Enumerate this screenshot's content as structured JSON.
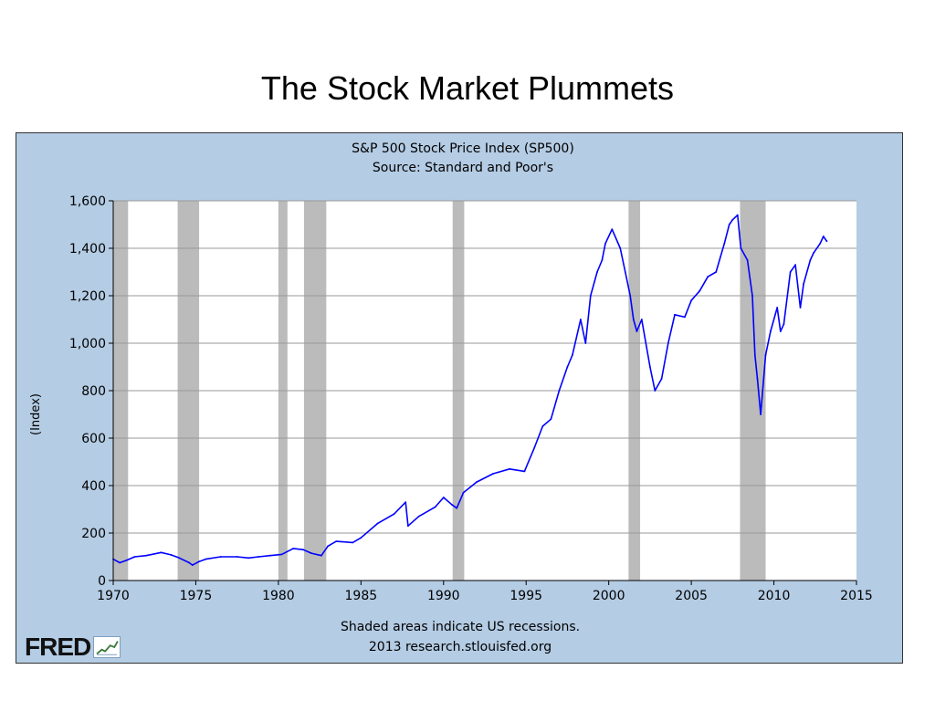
{
  "slide": {
    "title": "The Stock Market Plummets"
  },
  "footer": {
    "note": "Shaded areas indicate US recessions.",
    "credit": "2013 research.stlouisfed.org",
    "logo_text": "FRED"
  },
  "colors": {
    "line": "#0000ff",
    "recession": "#bbbbbb",
    "panel": "#b4cce4",
    "plot_bg": "#ffffff"
  },
  "chart_data": {
    "type": "line",
    "title": "S&P 500 Stock Price Index (SP500)",
    "subtitle": "Source: Standard and Poor's",
    "xlabel": "",
    "ylabel": "(Index)",
    "xlim": [
      1970,
      2015
    ],
    "ylim": [
      0,
      1600
    ],
    "x_ticks": [
      "1970",
      "1975",
      "1980",
      "1985",
      "1990",
      "1995",
      "2000",
      "2005",
      "2010",
      "2015"
    ],
    "y_ticks": [
      "0",
      "200",
      "400",
      "600",
      "800",
      "1,000",
      "1,200",
      "1,400",
      "1,600"
    ],
    "grid": true,
    "legend": "none",
    "recessions": [
      [
        1970.0,
        1970.9
      ],
      [
        1973.9,
        1975.2
      ],
      [
        1980.0,
        1980.55
      ],
      [
        1981.55,
        1982.9
      ],
      [
        1990.55,
        1991.25
      ],
      [
        2001.2,
        2001.9
      ],
      [
        2007.95,
        2009.5
      ]
    ],
    "series": [
      {
        "x": [
          1970.0,
          1970.4,
          1970.8,
          1971.3,
          1972.0,
          1972.9,
          1973.5,
          1974.0,
          1974.6,
          1974.8,
          1975.2,
          1975.6,
          1976.5,
          1977.5,
          1978.2,
          1978.8,
          1979.5,
          1980.2,
          1980.9,
          1981.5,
          1982.0,
          1982.6,
          1983.0,
          1983.5,
          1984.5,
          1985.0,
          1986.0,
          1987.0,
          1987.7,
          1987.85,
          1988.5,
          1989.5,
          1990.0,
          1990.5,
          1990.8,
          1991.2,
          1992.0,
          1993.0,
          1994.0,
          1994.9,
          1995.5,
          1996.0,
          1996.5,
          1997.0,
          1997.5,
          1997.8,
          1998.3,
          1998.6,
          1998.9,
          1999.3,
          1999.6,
          1999.8,
          2000.2,
          2000.7,
          2001.0,
          2001.3,
          2001.5,
          2001.7,
          2002.0,
          2002.5,
          2002.8,
          2003.2,
          2003.6,
          2004.0,
          2004.6,
          2005.0,
          2005.5,
          2006.0,
          2006.5,
          2007.0,
          2007.3,
          2007.5,
          2007.8,
          2008.0,
          2008.4,
          2008.7,
          2008.85,
          2009.0,
          2009.2,
          2009.5,
          2009.8,
          2010.2,
          2010.4,
          2010.6,
          2011.0,
          2011.3,
          2011.6,
          2011.8,
          2012.2,
          2012.4,
          2012.8,
          2013.0,
          2013.2
        ],
        "values": [
          90,
          75,
          85,
          100,
          105,
          118,
          108,
          95,
          75,
          65,
          80,
          90,
          100,
          100,
          95,
          100,
          105,
          110,
          135,
          130,
          115,
          105,
          145,
          165,
          160,
          180,
          240,
          280,
          330,
          230,
          270,
          310,
          350,
          320,
          305,
          370,
          415,
          450,
          470,
          460,
          560,
          650,
          680,
          800,
          900,
          950,
          1100,
          1000,
          1200,
          1300,
          1350,
          1420,
          1480,
          1400,
          1300,
          1200,
          1100,
          1050,
          1100,
          900,
          800,
          850,
          1000,
          1120,
          1110,
          1180,
          1220,
          1280,
          1300,
          1420,
          1500,
          1520,
          1540,
          1400,
          1350,
          1200,
          950,
          850,
          700,
          950,
          1050,
          1150,
          1050,
          1080,
          1300,
          1330,
          1150,
          1250,
          1350,
          1380,
          1420,
          1450,
          1430
        ]
      }
    ]
  }
}
